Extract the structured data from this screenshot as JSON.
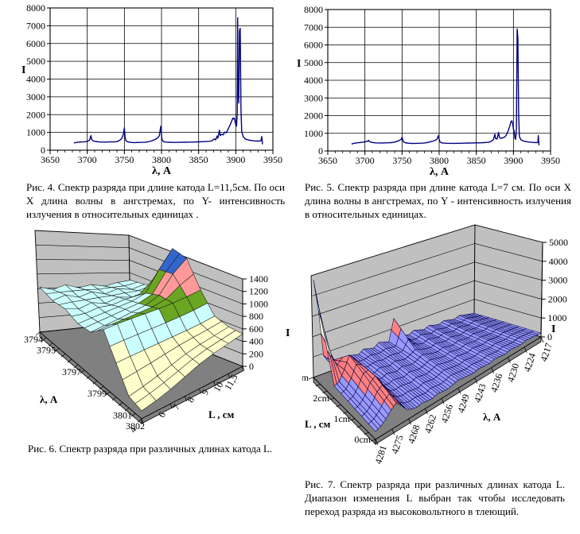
{
  "captions": {
    "fig4": "Рис.  4.  Спектр разряда при длине катода L=11,5см. По  оси  Х  длина  волны  в  ангстремах,  по  Y- интенсивность излучения в относительных единицах .",
    "fig5": "Рис. 5.  Спектр разряда при длине катода L=7 см. По оси Х длина волны в ангстремах, по Y - интенсивность излучения в относительных единицах.",
    "fig6": "Рис.  6.  Спектр разряда при различных  длинах  катода L.",
    "fig7": "Рис. 7. Спектр  разряда  при  различных  длинах катода  L.  Диапазон  изменения  L   выбран  так чтобы  исследовать  переход  разряда  из высоковольтного в тлеющий."
  },
  "chart_data": [
    {
      "id": "fig4",
      "type": "line",
      "title": "",
      "xlabel": "λ, A",
      "ylabel": "I",
      "xlim": [
        3650,
        3950
      ],
      "ylim": [
        0,
        8000
      ],
      "xticks": [
        3650,
        3700,
        3750,
        3800,
        3850,
        3900,
        3950
      ],
      "xminor_step": 10,
      "yticks": [
        0,
        1000,
        2000,
        3000,
        4000,
        5000,
        6000,
        7000,
        8000
      ],
      "grid": true,
      "line_color": "#000080",
      "points": [
        [
          3682,
          400
        ],
        [
          3684,
          430
        ],
        [
          3687,
          450
        ],
        [
          3690,
          460
        ],
        [
          3694,
          465
        ],
        [
          3698,
          480
        ],
        [
          3701,
          520
        ],
        [
          3703,
          560
        ],
        [
          3705,
          820
        ],
        [
          3706,
          600
        ],
        [
          3708,
          520
        ],
        [
          3711,
          490
        ],
        [
          3715,
          470
        ],
        [
          3719,
          460
        ],
        [
          3723,
          458
        ],
        [
          3727,
          460
        ],
        [
          3731,
          463
        ],
        [
          3735,
          468
        ],
        [
          3739,
          480
        ],
        [
          3742,
          520
        ],
        [
          3745,
          600
        ],
        [
          3747,
          700
        ],
        [
          3749,
          950
        ],
        [
          3750,
          1250
        ],
        [
          3751,
          700
        ],
        [
          3752,
          540
        ],
        [
          3754,
          480
        ],
        [
          3757,
          450
        ],
        [
          3760,
          435
        ],
        [
          3764,
          430
        ],
        [
          3768,
          432
        ],
        [
          3772,
          436
        ],
        [
          3776,
          442
        ],
        [
          3780,
          455
        ],
        [
          3784,
          490
        ],
        [
          3788,
          540
        ],
        [
          3792,
          620
        ],
        [
          3795,
          700
        ],
        [
          3797,
          800
        ],
        [
          3799,
          1350
        ],
        [
          3800,
          800
        ],
        [
          3801,
          560
        ],
        [
          3803,
          480
        ],
        [
          3806,
          455
        ],
        [
          3810,
          445
        ],
        [
          3815,
          440
        ],
        [
          3820,
          440
        ],
        [
          3825,
          443
        ],
        [
          3830,
          448
        ],
        [
          3835,
          452
        ],
        [
          3840,
          457
        ],
        [
          3845,
          462
        ],
        [
          3850,
          468
        ],
        [
          3855,
          476
        ],
        [
          3860,
          486
        ],
        [
          3864,
          500
        ],
        [
          3867,
          520
        ],
        [
          3869,
          560
        ],
        [
          3871,
          640
        ],
        [
          3873,
          580
        ],
        [
          3875,
          800
        ],
        [
          3876,
          680
        ],
        [
          3878,
          1120
        ],
        [
          3879,
          820
        ],
        [
          3881,
          900
        ],
        [
          3883,
          860
        ],
        [
          3885,
          1020
        ],
        [
          3887,
          980
        ],
        [
          3889,
          1120
        ],
        [
          3891,
          1300
        ],
        [
          3893,
          1480
        ],
        [
          3895,
          1700
        ],
        [
          3896,
          1800
        ],
        [
          3897,
          1760
        ],
        [
          3898,
          1800
        ],
        [
          3899,
          1620
        ],
        [
          3900,
          1430
        ],
        [
          3901,
          1350
        ],
        [
          3902,
          2100
        ],
        [
          3902.5,
          7450
        ],
        [
          3903,
          3600
        ],
        [
          3904,
          2650
        ],
        [
          3905,
          6700
        ],
        [
          3906,
          6850
        ],
        [
          3907,
          2300
        ],
        [
          3908,
          1050
        ],
        [
          3910,
          760
        ],
        [
          3913,
          620
        ],
        [
          3917,
          570
        ],
        [
          3921,
          545
        ],
        [
          3925,
          525
        ],
        [
          3929,
          515
        ],
        [
          3932,
          512
        ],
        [
          3934,
          530
        ],
        [
          3935,
          770
        ],
        [
          3935.5,
          540
        ],
        [
          3936,
          330
        ]
      ]
    },
    {
      "id": "fig5",
      "type": "line",
      "title": "",
      "xlabel": "λ, A",
      "ylabel": "I",
      "xlim": [
        3650,
        3950
      ],
      "ylim": [
        0,
        8000
      ],
      "xticks": [
        3650,
        3700,
        3750,
        3800,
        3850,
        3900,
        3950
      ],
      "xminor_step": 10,
      "yticks": [
        0,
        1000,
        2000,
        3000,
        4000,
        5000,
        6000,
        7000,
        8000
      ],
      "grid": true,
      "line_color": "#000080",
      "points": [
        [
          3682,
          395
        ],
        [
          3684,
          420
        ],
        [
          3687,
          445
        ],
        [
          3690,
          465
        ],
        [
          3694,
          480
        ],
        [
          3698,
          505
        ],
        [
          3701,
          530
        ],
        [
          3703,
          545
        ],
        [
          3705,
          605
        ],
        [
          3706,
          540
        ],
        [
          3708,
          500
        ],
        [
          3711,
          475
        ],
        [
          3715,
          460
        ],
        [
          3719,
          455
        ],
        [
          3723,
          455
        ],
        [
          3727,
          458
        ],
        [
          3731,
          462
        ],
        [
          3735,
          470
        ],
        [
          3739,
          490
        ],
        [
          3742,
          530
        ],
        [
          3745,
          570
        ],
        [
          3747,
          610
        ],
        [
          3749,
          660
        ],
        [
          3750,
          780
        ],
        [
          3751,
          620
        ],
        [
          3752,
          520
        ],
        [
          3754,
          470
        ],
        [
          3757,
          448
        ],
        [
          3760,
          435
        ],
        [
          3764,
          428
        ],
        [
          3768,
          430
        ],
        [
          3772,
          434
        ],
        [
          3776,
          440
        ],
        [
          3780,
          452
        ],
        [
          3784,
          478
        ],
        [
          3788,
          520
        ],
        [
          3792,
          560
        ],
        [
          3795,
          610
        ],
        [
          3797,
          660
        ],
        [
          3799,
          870
        ],
        [
          3800,
          680
        ],
        [
          3801,
          520
        ],
        [
          3803,
          465
        ],
        [
          3806,
          445
        ],
        [
          3810,
          436
        ],
        [
          3815,
          430
        ],
        [
          3820,
          430
        ],
        [
          3825,
          434
        ],
        [
          3830,
          438
        ],
        [
          3835,
          443
        ],
        [
          3840,
          448
        ],
        [
          3845,
          453
        ],
        [
          3850,
          458
        ],
        [
          3855,
          464
        ],
        [
          3860,
          472
        ],
        [
          3864,
          484
        ],
        [
          3867,
          500
        ],
        [
          3869,
          530
        ],
        [
          3871,
          580
        ],
        [
          3873,
          640
        ],
        [
          3875,
          950
        ],
        [
          3876,
          700
        ],
        [
          3878,
          680
        ],
        [
          3880,
          1050
        ],
        [
          3881,
          780
        ],
        [
          3883,
          710
        ],
        [
          3885,
          735
        ],
        [
          3887,
          760
        ],
        [
          3889,
          820
        ],
        [
          3891,
          950
        ],
        [
          3893,
          1150
        ],
        [
          3895,
          1400
        ],
        [
          3896,
          1550
        ],
        [
          3897,
          1690
        ],
        [
          3898,
          1700
        ],
        [
          3899,
          1520
        ],
        [
          3900,
          1260
        ],
        [
          3901,
          1120
        ],
        [
          3902,
          720
        ],
        [
          3903,
          660
        ],
        [
          3904,
          1250
        ],
        [
          3905,
          6900
        ],
        [
          3906,
          6400
        ],
        [
          3907,
          2100
        ],
        [
          3908,
          820
        ],
        [
          3910,
          640
        ],
        [
          3913,
          570
        ],
        [
          3917,
          530
        ],
        [
          3921,
          505
        ],
        [
          3925,
          488
        ],
        [
          3929,
          478
        ],
        [
          3932,
          478
        ],
        [
          3933,
          480
        ],
        [
          3933.5,
          870
        ],
        [
          3934,
          540
        ],
        [
          3934.5,
          320
        ]
      ]
    },
    {
      "id": "fig6",
      "type": "surface3d",
      "xlabel": "λ, A",
      "ylabel": "L , см",
      "zlabel": "I",
      "zlim": [
        0,
        1400
      ],
      "ztick": 200,
      "z_labels": [
        "0",
        "200",
        "400",
        "600",
        "800",
        "1000",
        "1200",
        "1400"
      ],
      "row_values": [
        3794,
        3795,
        3796,
        3797,
        3798,
        3799,
        3800,
        3801,
        3802
      ],
      "col_values": [
        4,
        5,
        6,
        7,
        8,
        9,
        10,
        11.5
      ],
      "row_labels": [
        {
          "t": "3794",
          "p": 0
        },
        {
          "t": "3795",
          "p": 0.125
        },
        {
          "t": "3797",
          "p": 0.375
        },
        {
          "t": "3799",
          "p": 0.625
        },
        {
          "t": "3801",
          "p": 0.875
        },
        {
          "t": "3802",
          "p": 1
        }
      ],
      "col_labels": [
        {
          "t": "4",
          "p": 0
        },
        {
          "t": "6",
          "p": 0.286
        },
        {
          "t": "7",
          "p": 0.429
        },
        {
          "t": "8",
          "p": 0.571
        },
        {
          "t": "9",
          "p": 0.714
        },
        {
          "t": "10",
          "p": 0.857
        },
        {
          "t": "11,5",
          "p": 1
        }
      ],
      "bands": [
        {
          "max": 600,
          "color": "#FFFFCC"
        },
        {
          "max": 800,
          "color": "#CCFFFF"
        },
        {
          "max": 1000,
          "color": "#6AA621"
        },
        {
          "max": 1200,
          "color": "#FF9999"
        },
        {
          "max": 1500,
          "color": "#3366CC"
        }
      ],
      "wall_color": "#C0C0C0",
      "floor_color": "#808080",
      "wire_color": "#1A1A1A",
      "values": [
        [
          620,
          580,
          640,
          590,
          630,
          600,
          650,
          680
        ],
        [
          590,
          650,
          600,
          660,
          610,
          670,
          640,
          700
        ],
        [
          630,
          600,
          660,
          620,
          680,
          650,
          700,
          750
        ],
        [
          580,
          620,
          660,
          700,
          740,
          820,
          1150,
          1450
        ],
        [
          620,
          660,
          700,
          750,
          800,
          900,
          1180,
          1380
        ],
        [
          820,
          840,
          850,
          860,
          870,
          890,
          920,
          960
        ],
        [
          500,
          515,
          530,
          545,
          560,
          575,
          595,
          630
        ],
        [
          170,
          220,
          280,
          350,
          420,
          470,
          505,
          545
        ],
        [
          120,
          160,
          220,
          300,
          380,
          440,
          480,
          520
        ]
      ]
    },
    {
      "id": "fig7",
      "type": "surface3d",
      "xlabel": "λ, A",
      "ylabel": "L , см",
      "zlabel": "I",
      "zlim": [
        0,
        5000
      ],
      "ztick": 1000,
      "z_labels": [
        "0",
        "1000",
        "2000",
        "3000",
        "4000",
        "5000"
      ],
      "row_values": [
        0,
        1,
        2,
        5
      ],
      "col_values_note": "wavelength from 4281 (front) to 4217 (right), step 2 A",
      "row_labels": [
        {
          "t": "0cm",
          "p": 0
        },
        {
          "t": "1cm",
          "p": 0.333
        },
        {
          "t": "2cm",
          "p": 0.667
        },
        {
          "t": "5cm",
          "p": 1
        }
      ],
      "col_labels": [
        {
          "t": "4281",
          "p": 0
        },
        {
          "t": "4275",
          "p": 0.1
        },
        {
          "t": "4268",
          "p": 0.2
        },
        {
          "t": "4262",
          "p": 0.3
        },
        {
          "t": "4256",
          "p": 0.4
        },
        {
          "t": "4249",
          "p": 0.5
        },
        {
          "t": "4243",
          "p": 0.6
        },
        {
          "t": "4236",
          "p": 0.7
        },
        {
          "t": "4230",
          "p": 0.8
        },
        {
          "t": "4224",
          "p": 0.9
        },
        {
          "t": "4217",
          "p": 1
        }
      ],
      "bands": [
        {
          "max": 1000,
          "color": "#9999FF"
        },
        {
          "max": 2000,
          "color": "#FF8080"
        },
        {
          "max": 3000,
          "color": "#FFFFCC"
        },
        {
          "max": 4000,
          "color": "#CCFFFF"
        },
        {
          "max": 6000,
          "color": "#660066"
        }
      ],
      "wall_color": "#C0C0C0",
      "floor_color": "#808080",
      "wire_color": "#00003C",
      "values": [
        [
          400,
          500,
          700,
          1000,
          1200,
          900,
          550,
          400,
          340,
          380,
          330,
          290,
          380,
          330,
          290,
          350,
          420,
          370,
          320,
          290,
          350,
          310,
          280,
          340,
          300,
          270,
          320,
          280,
          250,
          300,
          270,
          240,
          200
        ],
        [
          500,
          600,
          900,
          1400,
          1600,
          1200,
          700,
          450,
          380,
          420,
          360,
          310,
          430,
          370,
          320,
          400,
          500,
          430,
          370,
          320,
          400,
          340,
          300,
          380,
          330,
          290,
          360,
          310,
          270,
          340,
          300,
          260,
          220
        ],
        [
          600,
          700,
          1200,
          1800,
          1500,
          1100,
          600,
          400,
          350,
          500,
          420,
          360,
          480,
          400,
          340,
          450,
          600,
          500,
          400,
          350,
          450,
          380,
          320,
          420,
          360,
          300,
          400,
          340,
          290,
          380,
          320,
          280,
          240
        ],
        [
          4800,
          3200,
          900,
          500,
          400,
          350,
          300,
          450,
          380,
          320,
          500,
          420,
          360,
          550,
          480,
          400,
          1500,
          700,
          450,
          380,
          520,
          440,
          360,
          480,
          400,
          350,
          450,
          380,
          320,
          420,
          360,
          300,
          250
        ]
      ]
    }
  ]
}
